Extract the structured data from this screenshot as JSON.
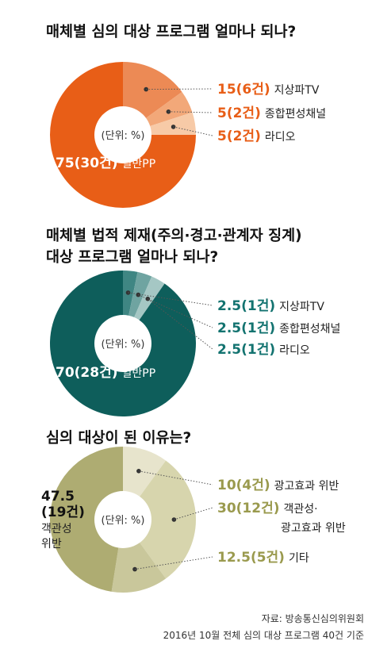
{
  "chart_data": [
    {
      "type": "pie",
      "title": "매체별 심의 대상 프로그램 얼마나 되나?",
      "unit_label": "(단위: %)",
      "slices": [
        {
          "value": 15,
          "value_text": "15(6건)",
          "name": "지상파TV",
          "color": "#ec8a55"
        },
        {
          "value": 5,
          "value_text": "5(2건)",
          "name": "종합편성채널",
          "color": "#f2a879"
        },
        {
          "value": 5,
          "value_text": "5(2건)",
          "name": "라디오",
          "color": "#f7caa7"
        },
        {
          "value": 75,
          "value_text": "75(30건)",
          "name": "일반PP",
          "color": "#e85e17"
        }
      ],
      "accent": "#e85e17"
    },
    {
      "type": "pie",
      "title": [
        "매체별 법적 제재(주의·경고·관계자 징계)",
        "대상 프로그램 얼마나 되나?"
      ],
      "unit_label": "(단위: %)",
      "slices": [
        {
          "value": 2.5,
          "value_text": "2.5(1건)",
          "name": "지상파TV",
          "color": "#3f8683"
        },
        {
          "value": 2.5,
          "value_text": "2.5(1건)",
          "name": "종합편성채널",
          "color": "#6fa4a1"
        },
        {
          "value": 2.5,
          "value_text": "2.5(1건)",
          "name": "라디오",
          "color": "#a5c7c4"
        },
        {
          "value": 70,
          "value_text": "70(28건)",
          "name": "일반PP",
          "color": "#0e5e5b"
        }
      ],
      "accent": "#137370"
    },
    {
      "type": "pie",
      "title": "심의 대상이 된 이유는?",
      "unit_label": "(단위: %)",
      "slices": [
        {
          "value": 10,
          "value_text": "10(4건)",
          "name": "광고효과 위반",
          "color": "#e7e4cc"
        },
        {
          "value": 30,
          "value_text": "30(12건)",
          "name": [
            "객관성·",
            "광고효과 위반"
          ],
          "color": "#d7d5ad"
        },
        {
          "value": 12.5,
          "value_text": "12.5(5건)",
          "name": "기타",
          "color": "#c9c79b"
        },
        {
          "value": 47.5,
          "value_text": [
            "47.5",
            "(19건)"
          ],
          "name": [
            "객관성",
            "위반"
          ],
          "color": "#aeac72"
        }
      ],
      "accent": "#9a9a4e"
    }
  ],
  "source": [
    "자료: 방송통신심의위원회",
    "2016년 10월 전체 심의 대상 프로그램 40건 기준"
  ]
}
